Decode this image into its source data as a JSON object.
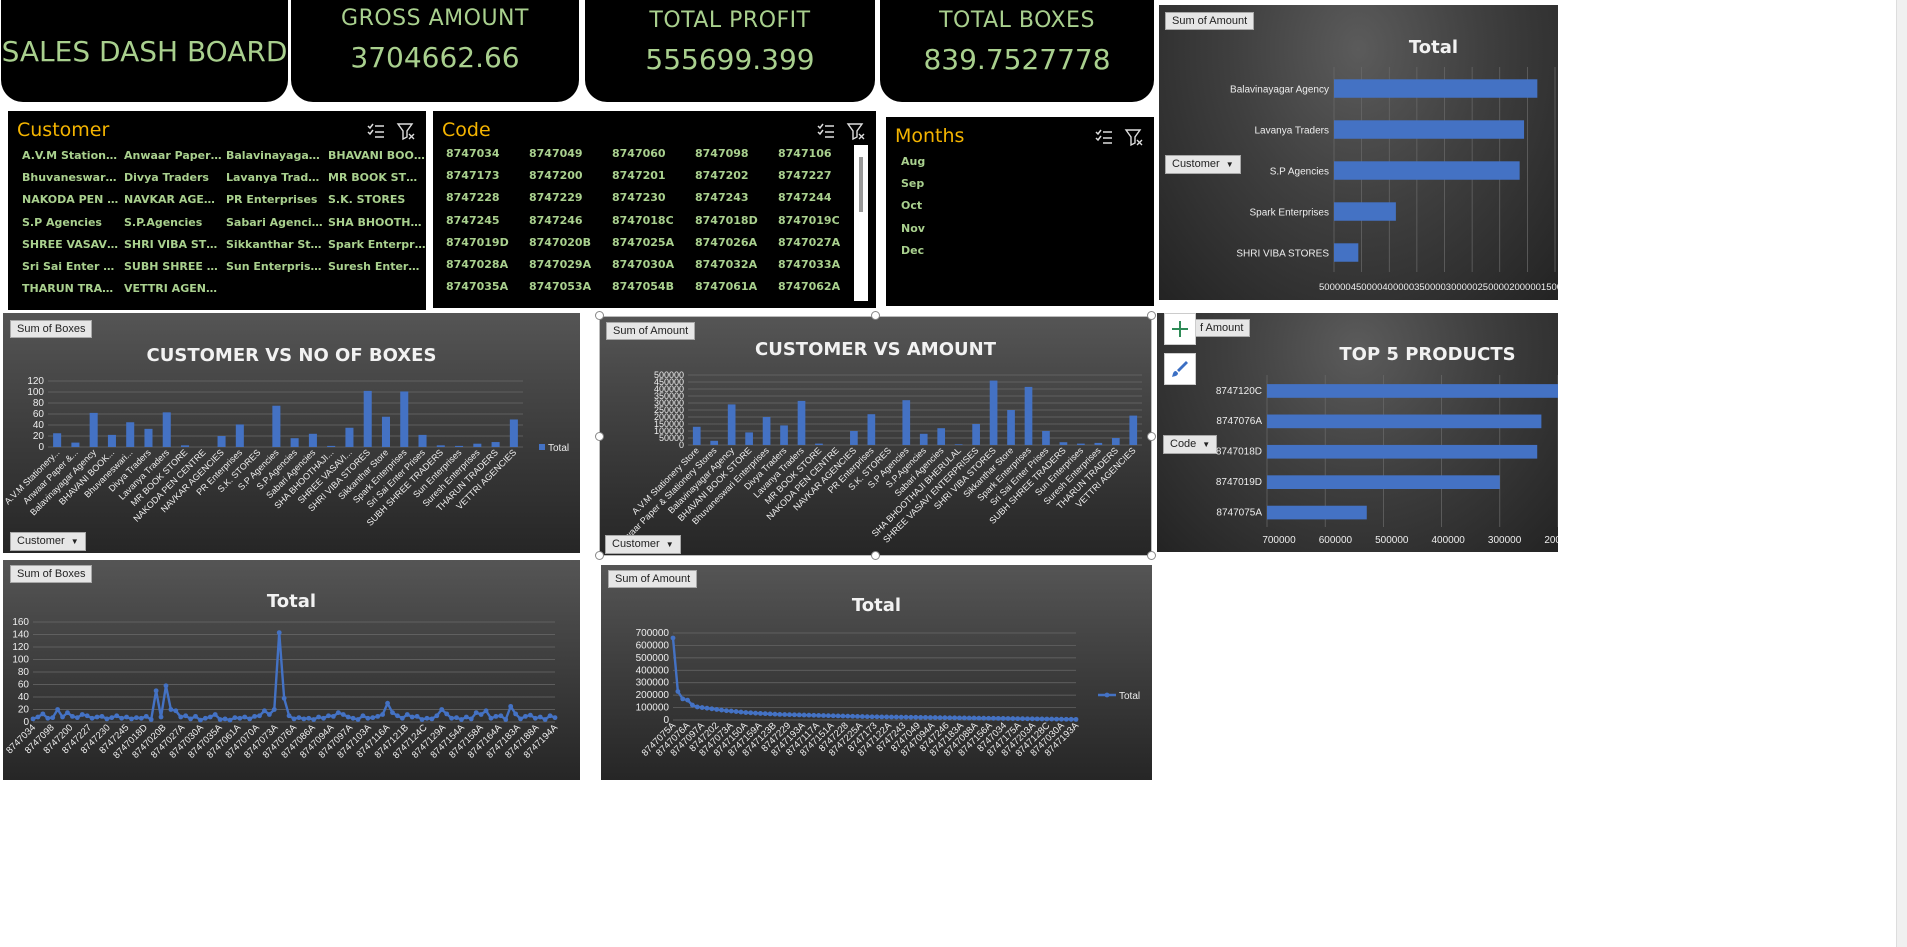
{
  "dashboard": {
    "title": "SALES DASH BOARD",
    "kpis": [
      {
        "label": "GROSS AMOUNT",
        "value": "3704662.66"
      },
      {
        "label": "TOTAL PROFIT",
        "value": "555699.399"
      },
      {
        "label": "TOTAL BOXES",
        "value": "839.7527778"
      }
    ]
  },
  "colors": {
    "accent_green": "#a9d08e",
    "slicer_title": "#f4b400",
    "bar_blue": "#4472c4",
    "kpi_bg": "#000000"
  },
  "slicers": {
    "customer": {
      "title": "Customer",
      "items": [
        "A.V.M Stationer...",
        "Anwaar Paper & ...",
        "Balavinayagar Ag...",
        "BHAVANI BOOK ...",
        "Bhuvaneswari En...",
        "Divya Traders",
        "Lavanya Traders",
        "MR BOOK STORE",
        "NAKODA PEN CE...",
        "NAVKAR AGENCI...",
        "PR Enterprises",
        "S.K. STORES",
        "S.P Agencies",
        "S.P.Agencies",
        "Sabari Agencies",
        "SHA BHOOTHAJI ...",
        "SHREE VASAVI E...",
        "SHRI VIBA STORES",
        "Sikkanthar Store",
        "Spark Enterprises",
        "Sri Sai Enter Pris...",
        "SUBH SHREE TRA...",
        "Sun Enterprises",
        "Suresh Enterprises",
        "THARUN TRADERS",
        "VETTRI AGENCIES"
      ]
    },
    "code": {
      "title": "Code",
      "items": [
        "8747034",
        "8747049",
        "8747060",
        "8747098",
        "8747106",
        "8747173",
        "8747200",
        "8747201",
        "8747202",
        "8747227",
        "8747228",
        "8747229",
        "8747230",
        "8747243",
        "8747244",
        "8747245",
        "8747246",
        "8747018C",
        "8747018D",
        "8747019C",
        "8747019D",
        "8747020B",
        "8747025A",
        "8747026A",
        "8747027A",
        "8747028A",
        "8747029A",
        "8747030A",
        "8747032A",
        "8747033A",
        "8747035A",
        "8747053A",
        "8747054B",
        "8747061A",
        "8747062A"
      ]
    },
    "months": {
      "title": "Months",
      "items": [
        "Aug",
        "Sep",
        "Oct",
        "Nov",
        "Dec"
      ]
    }
  },
  "field_buttons": {
    "sum_amount": "Sum of Amount",
    "sum_boxes": "Sum of Boxes",
    "customer": "Customer",
    "code": "Code",
    "sum_amount_partial": "f Amount"
  },
  "charts": {
    "top_customers": {
      "title": "Total"
    },
    "boxes": {
      "title": "CUSTOMER VS NO OF BOXES",
      "legend": "Total"
    },
    "amount": {
      "title": "CUSTOMER VS AMOUNT"
    },
    "top_products": {
      "title": "TOP 5 PRODUCTS"
    },
    "boxes_line": {
      "title": "Total"
    },
    "amount_line": {
      "title": "Total",
      "legend": "Total"
    }
  },
  "chart_data": [
    {
      "id": "top_customers",
      "type": "bar",
      "orientation": "horizontal",
      "title": "Total",
      "categories": [
        "Balavinayagar Agency",
        "Lavanya Traders",
        "S.P Agencies",
        "Spark Enterprises",
        "SHRI VIBA STORES"
      ],
      "values": [
        460000,
        430000,
        420000,
        140000,
        55000
      ],
      "x_tick_labels": "5000004500004000003500003000002500002000001500",
      "xlim": [
        0,
        500000
      ],
      "x_reversed": true,
      "grid": true
    },
    {
      "id": "boxes",
      "type": "bar",
      "title": "CUSTOMER VS NO OF BOXES",
      "categories": [
        "A.V.M Stationery...",
        "Anwaar Paper &...",
        "Balavinayagar Agency",
        "BHAVANI BOOK...",
        "Bhuvaneswari...",
        "Divya Traders",
        "Lavanya Traders",
        "MR BOOK STORE",
        "NAKODA PEN CENTRE",
        "NAVKAR AGENCIES",
        "PR Enterprises",
        "S.K. STORES",
        "S.P Agencies",
        "S.P.Agencies",
        "Sabari Agencies",
        "SHA BHOOTHAJI...",
        "SHREE VASAVI...",
        "SHRI VIBA STORES",
        "Sikkanthar Store",
        "Spark Enterprises",
        "Sri Sai Enter Prises",
        "SUBH SHREE TRADERS",
        "Sun Enterprises",
        "Suresh Enterprises",
        "THARUN TRADERS",
        "VETTRI AGENCIES"
      ],
      "series": [
        {
          "name": "Total",
          "values": [
            25,
            8,
            62,
            22,
            45,
            33,
            63,
            3,
            0,
            20,
            41,
            0,
            75,
            16,
            24,
            2,
            35,
            102,
            55,
            101,
            22,
            3,
            2,
            6,
            9,
            50
          ]
        }
      ],
      "yticks": [
        0,
        20,
        40,
        60,
        80,
        100,
        120
      ],
      "ylim": [
        0,
        120
      ],
      "legend": "right",
      "grid": true
    },
    {
      "id": "amount",
      "type": "bar",
      "title": "CUSTOMER VS AMOUNT",
      "categories": [
        "A.V.M Stationery Store",
        "Anwaar Paper & Stationery Stores",
        "Balavinayagar Agency",
        "BHAVANI BOOK STORE",
        "Bhuvaneswari Enterprises",
        "Divya Traders",
        "Lavanya Traders",
        "MR BOOK STORE",
        "NAKODA PEN CENTRE",
        "NAVKAR AGENCIES",
        "PR Enterprises",
        "S.K. STORES",
        "S.P Agencies",
        "S.P.Agencies",
        "Sabari Agencies",
        "SHA BHOOTHAJI BHERULAL",
        "SHREE VASAVI ENTERPRISES",
        "SHRI VIBA STORES",
        "Sikkanthar Store",
        "Spark Enterprises",
        "Sri Sai Enter Prises",
        "SUBH SHREE TRADERS",
        "Sun Enterprises",
        "Suresh Enterprises",
        "THARUN TRADERS",
        "VETTRI AGENCIES"
      ],
      "values": [
        130000,
        30000,
        290000,
        90000,
        200000,
        140000,
        315000,
        10000,
        0,
        100000,
        220000,
        0,
        320000,
        80000,
        120000,
        5000,
        150000,
        460000,
        250000,
        415000,
        100000,
        20000,
        10000,
        15000,
        50000,
        210000
      ],
      "yticks": [
        0,
        50000,
        100000,
        150000,
        200000,
        250000,
        300000,
        350000,
        400000,
        450000,
        500000
      ],
      "ylim": [
        0,
        500000
      ],
      "grid": true
    },
    {
      "id": "top_products",
      "type": "bar",
      "orientation": "horizontal",
      "title": "TOP 5 PRODUCTS",
      "categories": [
        "8747120C",
        "8747076A",
        "8747018D",
        "8747019D",
        "8747075A"
      ],
      "values": [
        700000,
        660000,
        650000,
        560000,
        240000
      ],
      "xticks": [
        700000,
        600000,
        500000,
        400000,
        300000,
        200000
      ],
      "x_reversed": true,
      "grid": true
    },
    {
      "id": "boxes_line",
      "type": "line",
      "title": "Total",
      "x_tick_labels": [
        "8747034",
        "8747098",
        "8747200",
        "8747227",
        "8747230",
        "8747245",
        "8747018D",
        "8747020B",
        "8747027A",
        "8747030A",
        "8747035A",
        "8747061A",
        "8747070A",
        "8747073A",
        "8747076A",
        "8747086A",
        "8747094A",
        "8747097A",
        "8747103A",
        "8747116A",
        "8747121B",
        "8747124C",
        "8747129A",
        "8747154A",
        "8747158A",
        "8747164A",
        "8747183A",
        "8747188A",
        "8747194A"
      ],
      "values": [
        5,
        8,
        13,
        6,
        7,
        20,
        8,
        15,
        9,
        7,
        12,
        10,
        6,
        8,
        9,
        5,
        7,
        10,
        6,
        8,
        5,
        7,
        6,
        9,
        4,
        50,
        8,
        58,
        20,
        18,
        8,
        10,
        5,
        9,
        3,
        6,
        8,
        12,
        4,
        5,
        3,
        7,
        6,
        8,
        5,
        9,
        10,
        18,
        12,
        20,
        143,
        38,
        10,
        5,
        7,
        5,
        6,
        4,
        8,
        6,
        10,
        9,
        15,
        12,
        8,
        6,
        4,
        10,
        6,
        7,
        9,
        12,
        30,
        15,
        10,
        6,
        12,
        8,
        9,
        4,
        6,
        5,
        10,
        20,
        13,
        6,
        7,
        4,
        8,
        5,
        15,
        12,
        18,
        6,
        9,
        10,
        4,
        25,
        13,
        5,
        9,
        11,
        6,
        8,
        4,
        10,
        7
      ],
      "yticks": [
        0,
        20,
        40,
        60,
        80,
        100,
        120,
        140,
        160
      ],
      "ylim": [
        0,
        160
      ],
      "grid": true
    },
    {
      "id": "amount_line",
      "type": "line",
      "title": "Total",
      "x_tick_labels": [
        "8747075A",
        "8747076A",
        "8747097A",
        "8747202",
        "8747073A",
        "8747150A",
        "8747159A",
        "8747123B",
        "8747229",
        "8747193A",
        "8747117A",
        "8747151A",
        "8747228",
        "8747225A",
        "8747173",
        "8747122A",
        "8747243",
        "8747049",
        "8747094A",
        "8747246",
        "8747183A",
        "8747088A",
        "8747156A",
        "8747034",
        "8747175A",
        "8747203A",
        "8747128C",
        "8747030A",
        "8747193A"
      ],
      "values": [
        660000,
        230000,
        170000,
        160000,
        120000,
        105000,
        100000,
        95000,
        90000,
        85000,
        80000,
        75000,
        72000,
        68000,
        64000,
        60000,
        58000,
        55000,
        53000,
        51000,
        49000,
        47000,
        45000,
        44000,
        43000,
        42000,
        41000,
        40000,
        39000,
        38000,
        37000,
        36000,
        35000,
        34000,
        33000,
        32000,
        31000,
        30000,
        29000,
        28000,
        27000,
        26000,
        25500,
        25000,
        24500,
        24000,
        23500,
        23000,
        22500,
        22000,
        21500,
        21000,
        20500,
        20000,
        19500,
        19000,
        18500,
        18000,
        17500,
        17000,
        16500,
        16000,
        15500,
        15000,
        14500,
        14000,
        13500,
        13000,
        12500,
        12000,
        11500,
        11000,
        10500,
        10000,
        9500,
        9000,
        8500,
        8000,
        7500,
        7000,
        6500,
        6000,
        5500,
        5000
      ],
      "yticks": [
        0,
        100000,
        200000,
        300000,
        400000,
        500000,
        600000,
        700000
      ],
      "ylim": [
        0,
        700000
      ],
      "legend": "right",
      "grid": true
    }
  ]
}
